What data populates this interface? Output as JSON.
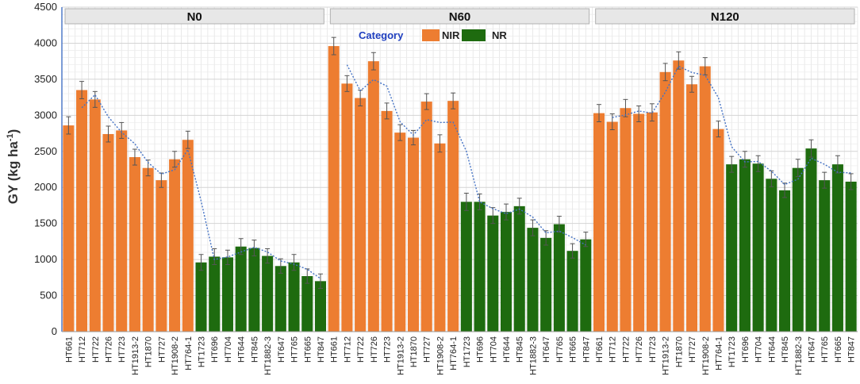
{
  "chart_data": {
    "type": "bar",
    "ylabel_main": "GY (kg ha",
    "ylabel_sup": "-1",
    "ylabel_close": ")",
    "ylim": [
      0,
      4500
    ],
    "yticks": [
      0,
      500,
      1000,
      1500,
      2000,
      2500,
      3000,
      3500,
      4000,
      4500
    ],
    "grid": true,
    "legend": {
      "title": "Category",
      "placement": "top-center",
      "entries": [
        {
          "name": "NIR",
          "color": "#ED7D31"
        },
        {
          "name": "NR",
          "color": "#1E6B0F"
        }
      ]
    },
    "colors": {
      "NIR": "#ED7D31",
      "NR": "#1E6B0F",
      "trend": "#4472C4",
      "panel_header": "#E7E7E7"
    },
    "trend_line": "dotted moving-average",
    "panels": [
      {
        "label": "N0",
        "categories": [
          "HT661",
          "HT712",
          "HT722",
          "HT726",
          "HT723",
          "HT1913-2",
          "HT1870",
          "HT727",
          "HT1908-2",
          "HT764-1",
          "HT1723",
          "HT696",
          "HT704",
          "HT644",
          "HT845",
          "HT1882-3",
          "HT647",
          "HT765",
          "HT665",
          "HT847"
        ],
        "groups": [
          "NIR",
          "NIR",
          "NIR",
          "NIR",
          "NIR",
          "NIR",
          "NIR",
          "NIR",
          "NIR",
          "NIR",
          "NR",
          "NR",
          "NR",
          "NR",
          "NR",
          "NR",
          "NR",
          "NR",
          "NR",
          "NR"
        ],
        "values": [
          2860,
          3350,
          3220,
          2740,
          2790,
          2420,
          2270,
          2100,
          2390,
          2660,
          960,
          1040,
          1030,
          1180,
          1160,
          1050,
          910,
          960,
          770,
          700
        ],
        "errors": [
          120,
          120,
          110,
          110,
          110,
          110,
          110,
          100,
          110,
          120,
          110,
          110,
          100,
          110,
          110,
          100,
          100,
          110,
          100,
          100
        ]
      },
      {
        "label": "N60",
        "categories": [
          "HT661",
          "HT712",
          "HT722",
          "HT726",
          "HT723",
          "HT1913-2",
          "HT1870",
          "HT727",
          "HT1908-2",
          "HT764-1",
          "HT1723",
          "HT696",
          "HT704",
          "HT644",
          "HT845",
          "HT1882-3",
          "HT647",
          "HT765",
          "HT665",
          "HT847"
        ],
        "groups": [
          "NIR",
          "NIR",
          "NIR",
          "NIR",
          "NIR",
          "NIR",
          "NIR",
          "NIR",
          "NIR",
          "NIR",
          "NR",
          "NR",
          "NR",
          "NR",
          "NR",
          "NR",
          "NR",
          "NR",
          "NR",
          "NR"
        ],
        "values": [
          3960,
          3440,
          3240,
          3750,
          3060,
          2760,
          2690,
          3190,
          2610,
          3200,
          1800,
          1800,
          1610,
          1660,
          1740,
          1440,
          1300,
          1490,
          1120,
          1280
        ],
        "errors": [
          120,
          110,
          110,
          120,
          110,
          110,
          100,
          110,
          120,
          110,
          120,
          110,
          110,
          110,
          110,
          110,
          100,
          110,
          100,
          100
        ]
      },
      {
        "label": "N120",
        "categories": [
          "HT661",
          "HT712",
          "HT722",
          "HT726",
          "HT723",
          "HT1913-2",
          "HT1870",
          "HT727",
          "HT1908-2",
          "HT764-1",
          "HT1723",
          "HT696",
          "HT704",
          "HT644",
          "HT845",
          "HT1882-3",
          "HT647",
          "HT765",
          "HT665",
          "HT847"
        ],
        "groups": [
          "NIR",
          "NIR",
          "NIR",
          "NIR",
          "NIR",
          "NIR",
          "NIR",
          "NIR",
          "NIR",
          "NIR",
          "NR",
          "NR",
          "NR",
          "NR",
          "NR",
          "NR",
          "NR",
          "NR",
          "NR",
          "NR"
        ],
        "values": [
          3030,
          2910,
          3100,
          3020,
          3040,
          3600,
          3760,
          3430,
          3680,
          2810,
          2320,
          2390,
          2330,
          2120,
          1960,
          2270,
          2540,
          2100,
          2320,
          2080
        ],
        "errors": [
          120,
          110,
          120,
          110,
          120,
          120,
          120,
          110,
          120,
          110,
          110,
          110,
          110,
          110,
          100,
          120,
          120,
          110,
          120,
          110
        ]
      }
    ]
  }
}
